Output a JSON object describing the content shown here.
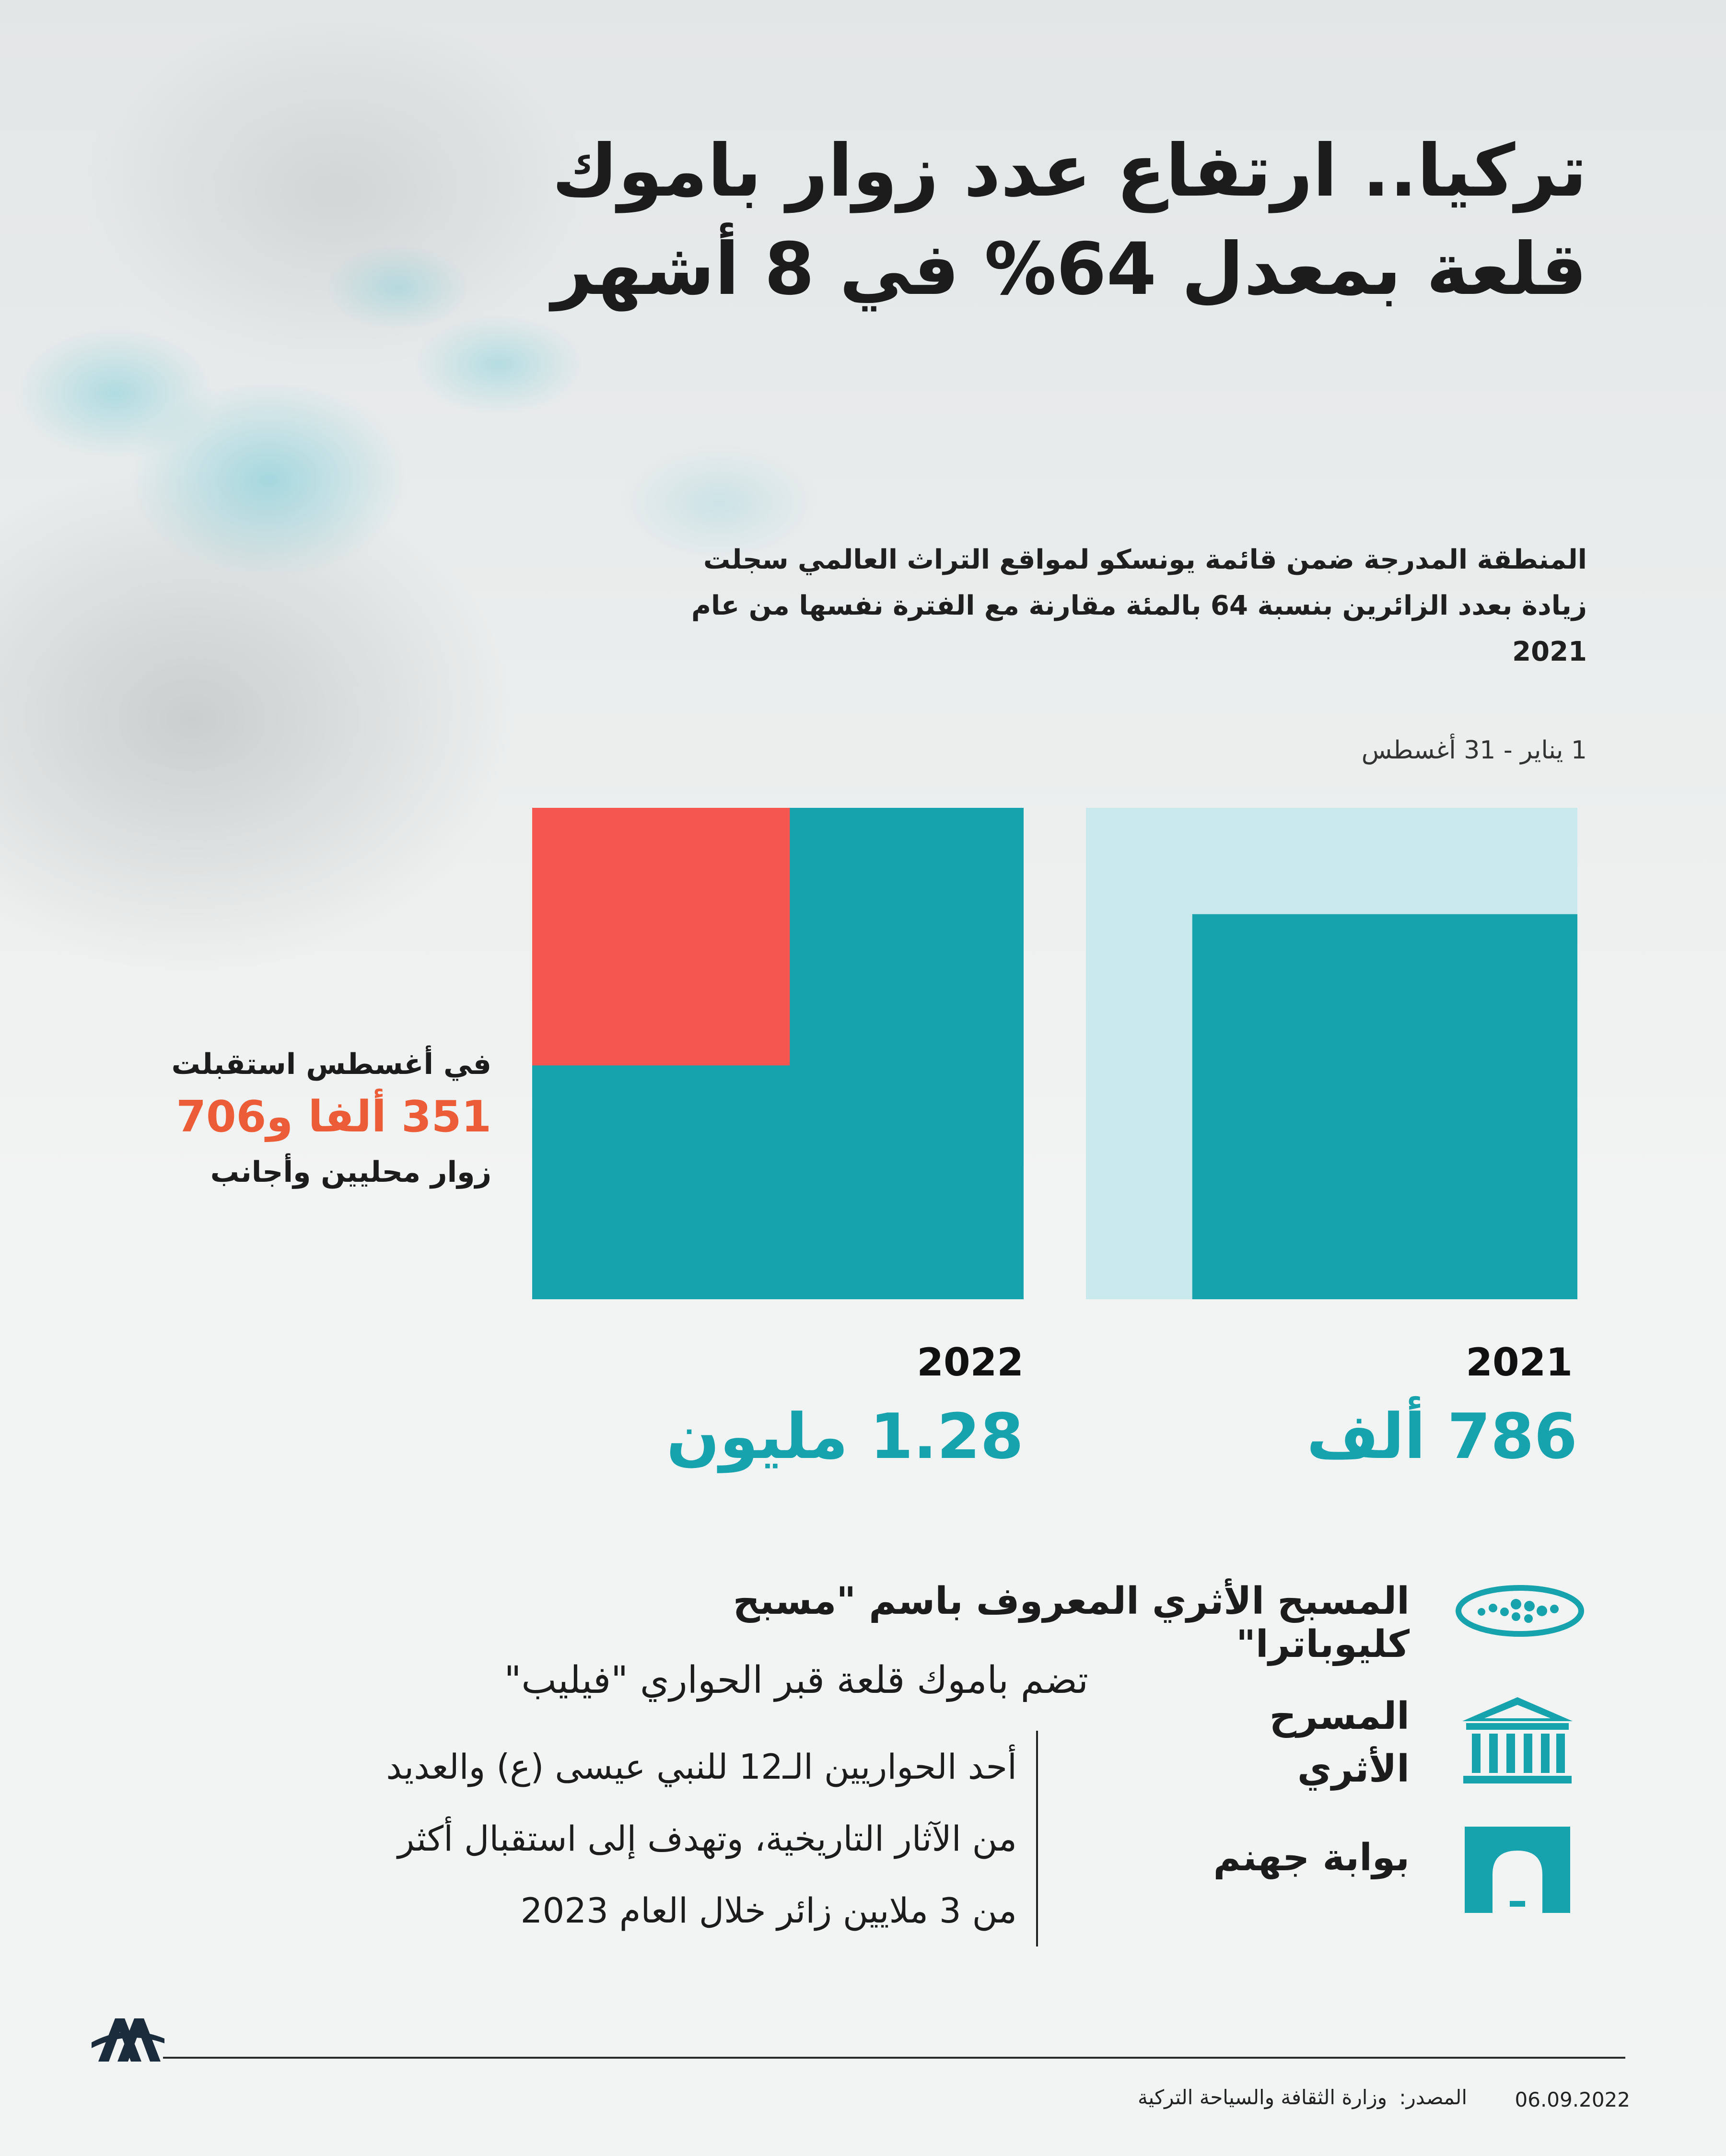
{
  "title": "تركيا.. ارتفاع عدد زوار باموك قلعة بمعدل 64% في 8 أشهر",
  "subtitle": "المنطقة المدرجة ضمن قائمة يونسكو لمواقع التراث العالمي سجلت زيادة بعدد الزائرين بنسبة 64 بالمئة مقارنة مع الفترة نفسها من عام 2021",
  "period": "1 يناير - 31 أغسطس",
  "august_note": {
    "line1": "في أغسطس استقبلت",
    "line2": "351 ألفا و706",
    "line3": "زوار محليين وأجانب"
  },
  "chart_data": {
    "type": "bar",
    "categories": [
      "2021",
      "2022"
    ],
    "values": [
      786000,
      1280000
    ],
    "labels": [
      "786 ألف",
      "1.28 مليون"
    ],
    "highlight": {
      "year": "2022",
      "value": 351706,
      "label": "في أغسطس"
    },
    "colors": {
      "bar": "#17a3ad",
      "frame": "#c9e9ec",
      "highlight": "#f5564f"
    }
  },
  "features": {
    "pool": "المسبح الأثري المعروف باسم \"مسبح كليوباترا\"",
    "theatre": [
      "المسرح",
      "الأثري"
    ],
    "gate": "بوابة جهنم"
  },
  "icons": {
    "pool": "pool-icon",
    "theatre": "theatre-icon",
    "gate": "gate-icon",
    "logo": "aa-logo-icon"
  },
  "philip": {
    "title": "تضم باموك قلعة قبر الحواري \"فيليب\"",
    "lines": [
      "أحد الحواريين الـ12 للنبي عيسى (ع) والعديد",
      "من الآثار التاريخية، وتهدف إلى استقبال أكثر",
      "من 3 ملايين زائر خلال العام 2023"
    ]
  },
  "footer": {
    "date": "06.09.2022",
    "source_label": "المصدر:",
    "source": "وزارة الثقافة والسياحة التركية"
  }
}
